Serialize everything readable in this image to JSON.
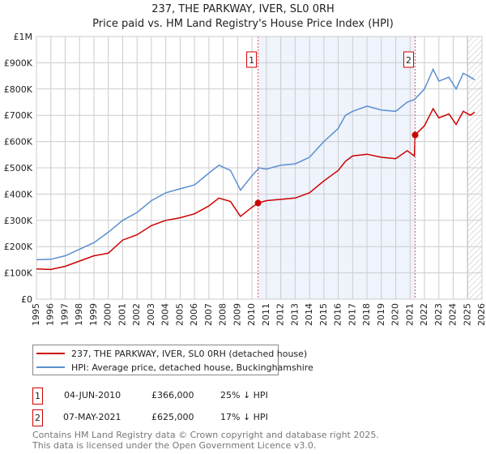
{
  "title_line1": "237, THE PARKWAY, IVER, SL0 0RH",
  "title_line2": "Price paid vs. HM Land Registry's House Price Index (HPI)",
  "legend": [
    {
      "label": "237, THE PARKWAY, IVER, SL0 0RH (detached house)",
      "color": "#cc0000"
    },
    {
      "label": "HPI: Average price, detached house, Buckinghamshire",
      "color": "#5b8fd0"
    }
  ],
  "sales": [
    {
      "num": "1",
      "date": "04-JUN-2010",
      "price": "£366,000",
      "delta": "25% ↓ HPI"
    },
    {
      "num": "2",
      "date": "07-MAY-2021",
      "price": "£625,000",
      "delta": "17% ↓ HPI"
    }
  ],
  "footer_line1": "Contains HM Land Registry data © Crown copyright and database right 2025.",
  "footer_line2": "This data is licensed under the Open Government Licence v3.0.",
  "chart_data": {
    "type": "line",
    "title": "237, THE PARKWAY, IVER, SL0 0RH — Price paid vs. HM Land Registry's House Price Index (HPI)",
    "xlim": [
      1995,
      2026
    ],
    "ylim": [
      0,
      1000000
    ],
    "x_ticks": [
      "1995",
      "1996",
      "1997",
      "1998",
      "1999",
      "2000",
      "2001",
      "2002",
      "2003",
      "2004",
      "2005",
      "2006",
      "2007",
      "2008",
      "2009",
      "2010",
      "2011",
      "2012",
      "2013",
      "2014",
      "2015",
      "2016",
      "2017",
      "2018",
      "2019",
      "2020",
      "2021",
      "2022",
      "2023",
      "2024",
      "2025",
      "2026"
    ],
    "y_ticks": [
      {
        "v": 0,
        "label": "£0"
      },
      {
        "v": 100000,
        "label": "£100K"
      },
      {
        "v": 200000,
        "label": "£200K"
      },
      {
        "v": 300000,
        "label": "£300K"
      },
      {
        "v": 400000,
        "label": "£400K"
      },
      {
        "v": 500000,
        "label": "£500K"
      },
      {
        "v": 600000,
        "label": "£600K"
      },
      {
        "v": 700000,
        "label": "£700K"
      },
      {
        "v": 800000,
        "label": "£800K"
      },
      {
        "v": 900000,
        "label": "£900K"
      },
      {
        "v": 1000000,
        "label": "£1M"
      }
    ],
    "grid": true,
    "shaded_range": [
      2010.42,
      2021.35
    ],
    "forecast_hatch_from": 2025.0,
    "markers": [
      {
        "label": "1",
        "x": 2010.42,
        "y": 366000
      },
      {
        "label": "2",
        "x": 2021.35,
        "y": 625000
      }
    ],
    "series": [
      {
        "name": "237, THE PARKWAY, IVER, SL0 0RH (detached house)",
        "color": "#cc0000",
        "x": [
          1995,
          1996,
          1997,
          1998,
          1999,
          2000,
          2001,
          2002,
          2003,
          2004,
          2005,
          2006,
          2007,
          2007.7,
          2008.5,
          2009.2,
          2010,
          2010.42,
          2011,
          2012,
          2013,
          2014,
          2015,
          2016,
          2016.5,
          2017,
          2018,
          2019,
          2020,
          2020.8,
          2021.3,
          2021.35,
          2022,
          2022.6,
          2023,
          2023.7,
          2024.2,
          2024.7,
          2025.2,
          2025.5
        ],
        "y": [
          115000,
          113000,
          125000,
          145000,
          165000,
          175000,
          225000,
          245000,
          280000,
          300000,
          310000,
          325000,
          355000,
          385000,
          372000,
          315000,
          350000,
          366000,
          375000,
          380000,
          385000,
          405000,
          450000,
          490000,
          525000,
          545000,
          552000,
          540000,
          535000,
          565000,
          545000,
          625000,
          660000,
          725000,
          690000,
          705000,
          665000,
          715000,
          700000,
          712000
        ]
      },
      {
        "name": "HPI: Average price, detached house, Buckinghamshire",
        "color": "#5b8fd0",
        "x": [
          1995,
          1996,
          1997,
          1998,
          1999,
          2000,
          2001,
          2002,
          2003,
          2004,
          2005,
          2006,
          2007,
          2007.7,
          2008.5,
          2009.2,
          2010,
          2010.5,
          2011,
          2012,
          2013,
          2014,
          2015,
          2016,
          2016.5,
          2017,
          2018,
          2019,
          2020,
          2020.8,
          2021.3,
          2022,
          2022.6,
          2023,
          2023.7,
          2024.2,
          2024.7,
          2025.2,
          2025.5
        ],
        "y": [
          150000,
          152000,
          165000,
          190000,
          215000,
          255000,
          300000,
          330000,
          375000,
          405000,
          420000,
          435000,
          480000,
          510000,
          490000,
          415000,
          470000,
          500000,
          495000,
          510000,
          515000,
          540000,
          600000,
          650000,
          700000,
          715000,
          735000,
          720000,
          715000,
          750000,
          760000,
          800000,
          875000,
          830000,
          845000,
          800000,
          860000,
          845000,
          835000
        ]
      }
    ]
  }
}
